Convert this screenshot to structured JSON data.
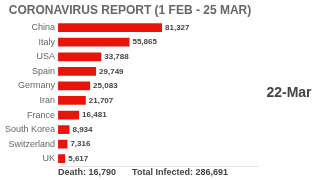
{
  "chart_data": {
    "type": "bar",
    "orientation": "horizontal",
    "title": "CORONAVIRUS REPORT (1 FEB - 25 MAR)",
    "categories": [
      "China",
      "Italy",
      "USA",
      "Spain",
      "Germany",
      "Iran",
      "France",
      "South Korea",
      "Switzerland",
      "UK"
    ],
    "values": [
      81327,
      55865,
      33788,
      29749,
      25083,
      21707,
      16481,
      8934,
      7316,
      5617
    ],
    "value_labels": [
      "81,327",
      "55,865",
      "33,788",
      "29,749",
      "25,083",
      "21,707",
      "16,481",
      "8,934",
      "7,316",
      "5,617"
    ],
    "data_labels": true,
    "color": "#E8140A",
    "xlim": [
      0,
      156398.0769230769
    ],
    "xticks": [],
    "tick_labels": "y",
    "grid": false,
    "annotations": [
      "22-Mar",
      "Death: 16,790",
      "Total Infected: 286,691"
    ]
  }
}
